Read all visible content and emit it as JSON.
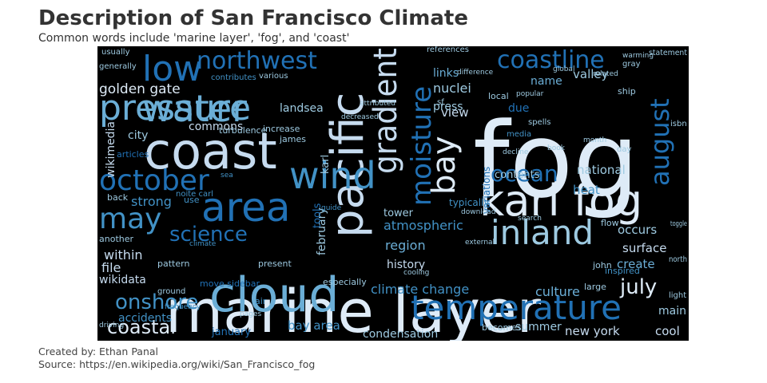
{
  "header": {
    "title": "Description of San Francisco Climate",
    "subtitle": "Common words include 'marine layer', 'fog', and 'coast'"
  },
  "footer": {
    "credit": "Created by: Ethan Panal",
    "source": "Source: https://en.wikipedia.org/wiki/San_Francisco_fog"
  },
  "colors": {
    "background": "#000000",
    "palette": [
      "#08306b",
      "#08519c",
      "#2171b5",
      "#4292c6",
      "#6baed6",
      "#9ecae1",
      "#c6dbef",
      "#deebf7"
    ]
  },
  "words": [
    {
      "text": "fog",
      "c": 7,
      "v": 0
    },
    {
      "text": "marine layer",
      "c": 7,
      "v": 0
    },
    {
      "text": "coast",
      "c": 6,
      "v": 0
    },
    {
      "text": "cloud",
      "c": 4,
      "v": 0
    },
    {
      "text": "pacific",
      "c": 6,
      "v": 1
    },
    {
      "text": "karl fog",
      "c": 7,
      "v": 0
    },
    {
      "text": "area",
      "c": 2,
      "v": 0
    },
    {
      "text": "wind",
      "c": 3,
      "v": 0
    },
    {
      "text": "water",
      "c": 4,
      "v": 0
    },
    {
      "text": "pressure",
      "c": 4,
      "v": 0
    },
    {
      "text": "low",
      "c": 2,
      "v": 0
    },
    {
      "text": "temperature",
      "c": 2,
      "v": 0
    },
    {
      "text": "inland",
      "c": 5,
      "v": 0
    },
    {
      "text": "gradient",
      "c": 6,
      "v": 1
    },
    {
      "text": "bay",
      "c": 7,
      "v": 1
    },
    {
      "text": "moisture",
      "c": 2,
      "v": 1
    },
    {
      "text": "october",
      "c": 2,
      "v": 0
    },
    {
      "text": "may",
      "c": 3,
      "v": 0
    },
    {
      "text": "northwest",
      "c": 2,
      "v": 0
    },
    {
      "text": "coastline",
      "c": 2,
      "v": 0
    },
    {
      "text": "august",
      "c": 2,
      "v": 1
    },
    {
      "text": "ocean",
      "c": 2,
      "v": 0
    },
    {
      "text": "coastal",
      "c": 7,
      "v": 0
    },
    {
      "text": "onshore",
      "c": 3,
      "v": 0
    },
    {
      "text": "science",
      "c": 2,
      "v": 0
    },
    {
      "text": "july",
      "c": 7,
      "v": 0
    },
    {
      "text": "golden gate",
      "c": 7,
      "v": 0
    },
    {
      "text": "climate change",
      "c": 3,
      "v": 0
    },
    {
      "text": "atmospheric",
      "c": 3,
      "v": 0
    },
    {
      "text": "february",
      "c": 5,
      "v": 1
    },
    {
      "text": "bay area",
      "c": 3,
      "v": 0
    },
    {
      "text": "condensation",
      "c": 5,
      "v": 0
    },
    {
      "text": "national",
      "c": 5,
      "v": 0
    },
    {
      "text": "culture",
      "c": 4,
      "v": 0
    },
    {
      "text": "history",
      "c": 6,
      "v": 0
    },
    {
      "text": "region",
      "c": 4,
      "v": 0
    },
    {
      "text": "surface",
      "c": 6,
      "v": 0
    },
    {
      "text": "create",
      "c": 4,
      "v": 0
    },
    {
      "text": "occurs",
      "c": 5,
      "v": 0
    },
    {
      "text": "heat",
      "c": 3,
      "v": 0
    },
    {
      "text": "valley",
      "c": 5,
      "v": 0
    },
    {
      "text": "nuclei",
      "c": 5,
      "v": 0
    },
    {
      "text": "press",
      "c": 5,
      "v": 0
    },
    {
      "text": "links",
      "c": 4,
      "v": 0
    },
    {
      "text": "view",
      "c": 6,
      "v": 0
    },
    {
      "text": "name",
      "c": 4,
      "v": 0
    },
    {
      "text": "due",
      "c": 2,
      "v": 0
    },
    {
      "text": "contents",
      "c": 5,
      "v": 0
    },
    {
      "text": "strong",
      "c": 3,
      "v": 0
    },
    {
      "text": "within",
      "c": 6,
      "v": 0
    },
    {
      "text": "file",
      "c": 6,
      "v": 0
    },
    {
      "text": "wikidata",
      "c": 6,
      "v": 0
    },
    {
      "text": "accidents",
      "c": 3,
      "v": 0
    },
    {
      "text": "city",
      "c": 5,
      "v": 0
    },
    {
      "text": "commons",
      "c": 6,
      "v": 0
    },
    {
      "text": "wikimedia",
      "c": 6,
      "v": 1
    },
    {
      "text": "karl",
      "c": 5,
      "v": 1
    },
    {
      "text": "tower",
      "c": 5,
      "v": 0
    },
    {
      "text": "landsea",
      "c": 5,
      "v": 0
    },
    {
      "text": "new york",
      "c": 6,
      "v": 0
    },
    {
      "text": "summer",
      "c": 5,
      "v": 0
    },
    {
      "text": "main",
      "c": 5,
      "v": 0
    },
    {
      "text": "cool",
      "c": 6,
      "v": 0
    },
    {
      "text": "january",
      "c": 2,
      "v": 0
    },
    {
      "text": "tools",
      "c": 2,
      "v": 1
    },
    {
      "text": "variations",
      "c": 2,
      "v": 1
    },
    {
      "text": "typically",
      "c": 3,
      "v": 0
    },
    {
      "text": "large",
      "c": 5,
      "v": 0
    },
    {
      "text": "isbn",
      "c": 5,
      "v": 0
    },
    {
      "text": "usually",
      "c": 5,
      "v": 0
    },
    {
      "text": "generally",
      "c": 5,
      "v": 0
    },
    {
      "text": "various",
      "c": 5,
      "v": 0
    },
    {
      "text": "sf",
      "c": 5,
      "v": 0
    },
    {
      "text": "local",
      "c": 5,
      "v": 0
    },
    {
      "text": "james",
      "c": 5,
      "v": 0
    },
    {
      "text": "turbulence",
      "c": 5,
      "v": 0
    },
    {
      "text": "increase",
      "c": 5,
      "v": 0
    },
    {
      "text": "back",
      "c": 5,
      "v": 0
    },
    {
      "text": "another",
      "c": 5,
      "v": 0
    },
    {
      "text": "pattern",
      "c": 5,
      "v": 0
    },
    {
      "text": "present",
      "c": 5,
      "v": 0
    },
    {
      "text": "especially",
      "c": 5,
      "v": 0
    },
    {
      "text": "becomes",
      "c": 5,
      "v": 0
    },
    {
      "text": "statement",
      "c": 5,
      "v": 0
    },
    {
      "text": "ship",
      "c": 5,
      "v": 0
    },
    {
      "text": "john",
      "c": 5,
      "v": 0
    },
    {
      "text": "north",
      "c": 5,
      "v": 0
    },
    {
      "text": "flow",
      "c": 5,
      "v": 0
    },
    {
      "text": "light",
      "c": 5,
      "v": 0
    },
    {
      "text": "day",
      "c": 5,
      "v": 0
    },
    {
      "text": "gray",
      "c": 5,
      "v": 0
    },
    {
      "text": "air",
      "c": 3,
      "v": 0
    },
    {
      "text": "use",
      "c": 3,
      "v": 0
    },
    {
      "text": "articles",
      "c": 2,
      "v": 0
    },
    {
      "text": "inspired",
      "c": 3,
      "v": 0
    },
    {
      "text": "popular",
      "c": 5,
      "v": 0
    },
    {
      "text": "media",
      "c": 3,
      "v": 0
    },
    {
      "text": "spells",
      "c": 5,
      "v": 0
    },
    {
      "text": "decline",
      "c": 5,
      "v": 0
    },
    {
      "text": "noite carl",
      "c": 3,
      "v": 0
    },
    {
      "text": "move sidebar",
      "c": 2,
      "v": 0
    },
    {
      "text": "contributes",
      "c": 3,
      "v": 0
    },
    {
      "text": "references",
      "c": 5,
      "v": 0
    },
    {
      "text": "decreased",
      "c": 5,
      "v": 0
    },
    {
      "text": "global",
      "c": 5,
      "v": 0
    },
    {
      "text": "related",
      "c": 5,
      "v": 0
    },
    {
      "text": "attributed",
      "c": 5,
      "v": 0
    },
    {
      "text": "difference",
      "c": 5,
      "v": 0
    },
    {
      "text": "download",
      "c": 5,
      "v": 0
    },
    {
      "text": "search",
      "c": 5,
      "v": 0
    },
    {
      "text": "frequency",
      "c": 3,
      "v": 0
    },
    {
      "text": "pages",
      "c": 5,
      "v": 0
    },
    {
      "text": "month",
      "c": 5,
      "v": 0
    },
    {
      "text": "toggle",
      "c": 5,
      "v": 0
    },
    {
      "text": "warming",
      "c": 5,
      "v": 0
    },
    {
      "text": "sea",
      "c": 3,
      "v": 0
    },
    {
      "text": "cooling",
      "c": 5,
      "v": 0
    },
    {
      "text": "guide",
      "c": 3,
      "v": 0
    },
    {
      "text": "external",
      "c": 5,
      "v": 0
    },
    {
      "text": "book",
      "c": 5,
      "v": 0
    },
    {
      "text": "ground",
      "c": 5,
      "v": 0
    },
    {
      "text": "driving",
      "c": 5,
      "v": 0
    },
    {
      "text": "climate",
      "c": 3,
      "v": 0
    },
    {
      "text": "sunset",
      "c": 3,
      "v": 0
    },
    {
      "text": "grown",
      "c": 3,
      "v": 0
    }
  ]
}
